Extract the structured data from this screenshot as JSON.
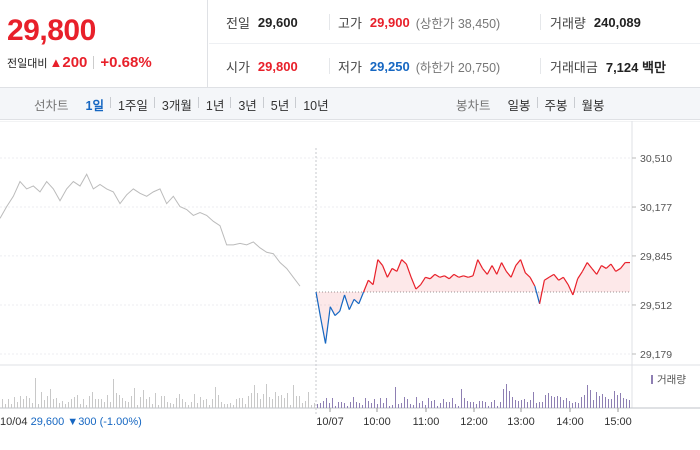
{
  "quote": {
    "price": "29,800",
    "change_label": "전일대비",
    "change_arrow": "▲",
    "change_value": "200",
    "change_percent": "+0.68%",
    "prev_close_label": "전일",
    "prev_close": "29,600",
    "high_label": "고가",
    "high": "29,900",
    "upper_limit": "(상한가 38,450)",
    "volume_label": "거래량",
    "volume": "240,089",
    "open_label": "시가",
    "open": "29,800",
    "low_label": "저가",
    "low": "29,250",
    "lower_limit": "(하한가 20,750)",
    "amount_label": "거래대금",
    "amount": "7,124 백만"
  },
  "toolbar": {
    "line_chart_label": "선차트",
    "periods": [
      "1일",
      "1주일",
      "3개월",
      "1년",
      "3년",
      "5년",
      "10년"
    ],
    "active_period": 0,
    "candle_chart_label": "봉차트",
    "candle_periods": [
      "일봉",
      "주봉",
      "월봉"
    ]
  },
  "colors": {
    "up": "#e8202a",
    "down": "#1667c2",
    "prev_day_line": "#bbbbbb",
    "volume_today": "#8e7fb3",
    "volume_prev": "#c8c8c8"
  },
  "chart_data": {
    "type": "line",
    "y_ticks": [
      "30,510",
      "30,177",
      "29,845",
      "29,512",
      "29,179"
    ],
    "ylim": [
      29179,
      30510
    ],
    "reference_price": 29600,
    "prev_day": {
      "x_label": "10/04",
      "info_close": "29,600",
      "info_arrow": "▼",
      "info_change": "300",
      "info_percent": "(-1.00%)",
      "values": [
        30100,
        30180,
        30250,
        30350,
        30300,
        30320,
        30280,
        30350,
        30300,
        30220,
        30300,
        30350,
        30320,
        30400,
        30300,
        30330,
        30300,
        30280,
        30200,
        30260,
        30300,
        30270,
        30250,
        30280,
        30300,
        30200,
        30250,
        30180,
        30160,
        30120,
        30140,
        30120,
        30080,
        30050,
        29920,
        29920,
        29930,
        29920,
        29940,
        29900,
        29870,
        29860,
        29800,
        29760,
        29700,
        29640
      ]
    },
    "today": {
      "x_labels": [
        "10/07",
        "10:00",
        "11:00",
        "12:00",
        "13:00",
        "14:00",
        "15:00"
      ],
      "values": [
        29600,
        29420,
        29250,
        29500,
        29440,
        29470,
        29580,
        29480,
        29550,
        29520,
        29600,
        29680,
        29650,
        29820,
        29780,
        29700,
        29760,
        29740,
        29820,
        29790,
        29700,
        29620,
        29650,
        29700,
        29690,
        29720,
        29700,
        29710,
        29690,
        29720,
        29700,
        29710,
        29700,
        29710,
        29820,
        29760,
        29720,
        29780,
        29720,
        29800,
        29740,
        29700,
        29780,
        29820,
        29730,
        29700,
        29640,
        29520,
        29680,
        29700,
        29720,
        29680,
        29700,
        29650,
        29580,
        29690,
        29740,
        29800,
        29760,
        29720,
        29780,
        29760,
        29790,
        29740,
        29760,
        29800,
        29800
      ]
    },
    "volume_label": "거래량"
  }
}
